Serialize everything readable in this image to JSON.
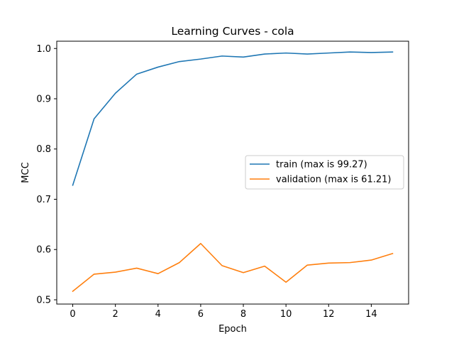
{
  "chart_data": {
    "type": "line",
    "title": "Learning Curves - cola",
    "xlabel": "Epoch",
    "ylabel": "MCC",
    "xlim": [
      -0.75,
      15.75
    ],
    "ylim": [
      0.4915,
      1.0145
    ],
    "xticks": [
      0,
      2,
      4,
      6,
      8,
      10,
      12,
      14
    ],
    "xtick_labels": [
      "0",
      "2",
      "4",
      "6",
      "8",
      "10",
      "12",
      "14"
    ],
    "yticks": [
      0.5,
      0.6,
      0.7,
      0.8,
      0.9,
      1.0
    ],
    "ytick_labels": [
      "0.5",
      "0.6",
      "0.7",
      "0.8",
      "0.9",
      "1.0"
    ],
    "x": [
      0,
      1,
      2,
      3,
      4,
      5,
      6,
      7,
      8,
      9,
      10,
      11,
      12,
      13,
      14,
      15
    ],
    "series": [
      {
        "name": "train (max is 99.27)",
        "color": "#1f77b4",
        "values": [
          0.728,
          0.86,
          0.911,
          0.949,
          0.963,
          0.974,
          0.979,
          0.985,
          0.983,
          0.989,
          0.991,
          0.989,
          0.991,
          0.993,
          0.992,
          0.993
        ]
      },
      {
        "name": "validation (max is 61.21)",
        "color": "#ff7f0e",
        "values": [
          0.517,
          0.551,
          0.555,
          0.563,
          0.552,
          0.574,
          0.612,
          0.568,
          0.554,
          0.567,
          0.535,
          0.569,
          0.573,
          0.574,
          0.579,
          0.592
        ]
      }
    ],
    "grid": false,
    "legend_position": "center-right"
  }
}
